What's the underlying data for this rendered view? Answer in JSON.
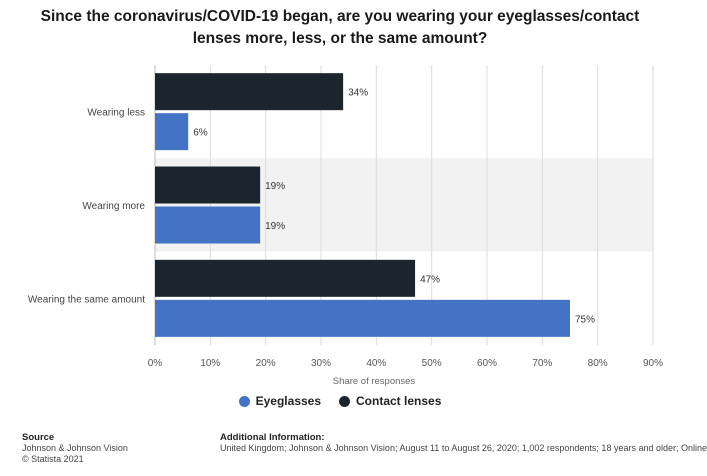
{
  "chart_data": {
    "type": "bar",
    "orientation": "horizontal",
    "title": "Since the coronavirus/COVID-19 began, are you wearing your eyeglasses/contact lenses more, less, or the same amount?",
    "categories": [
      "Wearing less",
      "Wearing more",
      "Wearing the same amount"
    ],
    "series": [
      {
        "name": "Contact lenses",
        "values": [
          34,
          19,
          47
        ],
        "color": "#1c252d"
      },
      {
        "name": "Eyeglasses",
        "values": [
          6,
          19,
          75
        ],
        "color": "#4472c4"
      }
    ],
    "xlabel": "Share of responses",
    "ylabel": "",
    "xlim": [
      0,
      90
    ],
    "ticks": [
      0,
      10,
      20,
      30,
      40,
      50,
      60,
      70,
      80,
      90
    ],
    "tick_suffix": "%",
    "value_suffix": "%",
    "grid": true,
    "legend": {
      "position": "bottom",
      "items": [
        {
          "name": "Eyeglasses",
          "color": "#4472c4"
        },
        {
          "name": "Contact lenses",
          "color": "#1c252d"
        }
      ]
    }
  },
  "footer": {
    "source_heading": "Source",
    "source_lines": [
      "Johnson & Johnson Vision",
      "© Statista 2021"
    ],
    "info_heading": "Additional Information:",
    "info_text": "United Kingdom; Johnson & Johnson Vision; August 11 to August 26, 2020; 1,002 respondents; 18 years and older; Online"
  }
}
